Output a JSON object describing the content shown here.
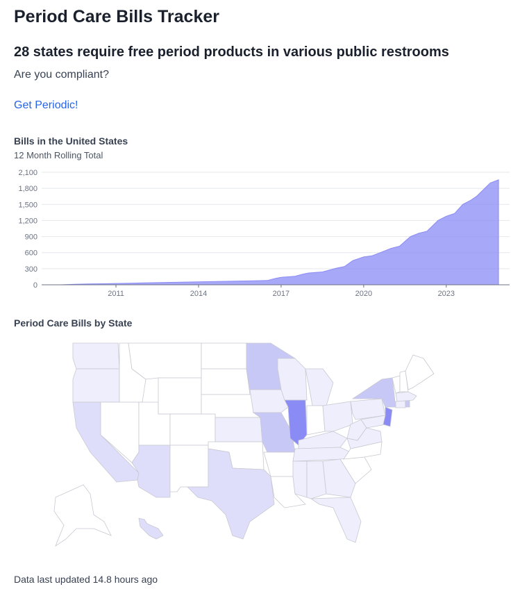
{
  "header": {
    "title": "Period Care Bills Tracker",
    "headline_count": "28 states",
    "headline_rest": " require free period products in various public restrooms",
    "subtitle": "Are you compliant?",
    "cta_label": "Get Periodic!"
  },
  "chart_section": {
    "title": "Bills in the United States",
    "subtitle": "12 Month Rolling Total"
  },
  "chart_data": {
    "type": "area",
    "title": "Bills in the United States",
    "subtitle": "12 Month Rolling Total",
    "xlabel": "",
    "ylabel": "",
    "ylim": [
      0,
      2100
    ],
    "xlim": [
      2008.3,
      2025.3
    ],
    "y_ticks": [
      "0",
      "300",
      "600",
      "900",
      "1,200",
      "1,500",
      "1,800",
      "2,100"
    ],
    "x_ticks": [
      "2011",
      "2014",
      "2017",
      "2020",
      "2023"
    ],
    "grid": true,
    "color": "#8b8bf5",
    "x": [
      2009,
      2009.5,
      2010,
      2010.5,
      2011,
      2011.5,
      2012,
      2012.5,
      2013,
      2013.5,
      2014,
      2014.5,
      2015,
      2015.5,
      2016,
      2016.5,
      2016.8,
      2017,
      2017.5,
      2017.8,
      2018,
      2018.5,
      2018.8,
      2019,
      2019.3,
      2019.6,
      2020,
      2020.3,
      2020.7,
      2021,
      2021.3,
      2021.7,
      2022,
      2022.3,
      2022.7,
      2023,
      2023.3,
      2023.6,
      2023.9,
      2024.1,
      2024.4,
      2024.6,
      2024.9
    ],
    "y": [
      0,
      10,
      15,
      20,
      25,
      30,
      35,
      40,
      45,
      50,
      55,
      60,
      65,
      70,
      75,
      80,
      120,
      140,
      160,
      200,
      220,
      240,
      280,
      310,
      340,
      450,
      520,
      540,
      620,
      680,
      720,
      900,
      960,
      1000,
      1200,
      1280,
      1330,
      1500,
      1580,
      1650,
      1800,
      1900,
      1960
    ]
  },
  "map_section": {
    "title": "Period Care Bills by State",
    "colors": {
      "none": "#ffffff",
      "low": "#eeeefc",
      "mid": "#dedefa",
      "high": "#c8c8f6",
      "max": "#8b8bf5"
    }
  },
  "footer": {
    "updated_text": "Data last updated 14.8 hours ago"
  }
}
